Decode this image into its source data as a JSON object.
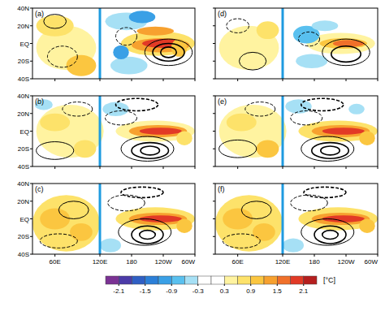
{
  "chart_data": {
    "type": "map",
    "xlim": [
      30,
      300
    ],
    "ylim": [
      -40,
      40
    ],
    "divider_lon": 120,
    "xticks": [
      {
        "value": 60,
        "label": "60E"
      },
      {
        "value": 120,
        "label": "120E"
      },
      {
        "value": 180,
        "label": "180"
      },
      {
        "value": 240,
        "label": "120W"
      },
      {
        "value": 300,
        "label": "60W"
      }
    ],
    "yticks": [
      {
        "value": 40,
        "label": "40N"
      },
      {
        "value": 20,
        "label": "20N"
      },
      {
        "value": 0,
        "label": "EQ"
      },
      {
        "value": -20,
        "label": "20S"
      },
      {
        "value": -40,
        "label": "40S"
      }
    ],
    "colorbar": {
      "bounds": [
        -2.1,
        -1.8,
        -1.5,
        -1.2,
        -0.9,
        -0.6,
        -0.3,
        0,
        0.3,
        0.6,
        0.9,
        1.2,
        1.5,
        1.8,
        2.1
      ],
      "colors": [
        "#7b3294",
        "#4b3ba8",
        "#2f5fc4",
        "#2b7fd8",
        "#3aa0e6",
        "#59c0ef",
        "#a6e0f5",
        "#ffffff",
        "#ffffff",
        "#fff3a0",
        "#fde26a",
        "#fbc640",
        "#f7a12f",
        "#f0702a",
        "#e23a26",
        "#b51f1f"
      ],
      "ticks": [
        -2.1,
        -1.5,
        -0.9,
        -0.3,
        0.3,
        0.9,
        1.5,
        2.1
      ],
      "label": "[°C]"
    },
    "panels": [
      {
        "label": "(a)",
        "shading": [
          [
            75,
            -5,
            40,
            25,
            0.5
          ],
          [
            60,
            20,
            25,
            12,
            0.8
          ],
          [
            95,
            -25,
            20,
            12,
            0.9
          ],
          [
            230,
            0,
            70,
            14,
            0.6
          ],
          [
            235,
            -2,
            55,
            8,
            1.2
          ],
          [
            240,
            0,
            40,
            5,
            1.8
          ],
          [
            270,
            -5,
            15,
            10,
            1.0
          ],
          [
            225,
            14,
            35,
            5,
            1.4
          ],
          [
            170,
            25,
            40,
            10,
            -0.6
          ],
          [
            200,
            30,
            25,
            7,
            -1.0
          ],
          [
            175,
            -25,
            35,
            10,
            -0.5
          ],
          [
            160,
            -10,
            15,
            8,
            -1.0
          ]
        ],
        "contours": [
          [
            250,
            -10,
            45,
            15,
            2
          ],
          [
            250,
            -10,
            30,
            10,
            4
          ],
          [
            250,
            -10,
            15,
            6,
            6
          ],
          [
            170,
            8,
            20,
            10,
            -2
          ],
          [
            60,
            25,
            15,
            8,
            2
          ],
          [
            70,
            -15,
            20,
            12,
            -2
          ]
        ]
      },
      {
        "label": "(b)",
        "shading": [
          [
            80,
            0,
            45,
            30,
            0.4
          ],
          [
            60,
            10,
            20,
            10,
            0.7
          ],
          [
            100,
            -20,
            15,
            10,
            0.8
          ],
          [
            225,
            0,
            75,
            12,
            0.5
          ],
          [
            230,
            0,
            55,
            7,
            1.2
          ],
          [
            235,
            0,
            40,
            4,
            1.9
          ],
          [
            280,
            -8,
            15,
            8,
            0.8
          ],
          [
            150,
            25,
            25,
            8,
            -0.4
          ],
          [
            45,
            30,
            12,
            6,
            -0.5
          ]
        ],
        "contours": [
          [
            210,
            -20,
            50,
            14,
            2
          ],
          [
            215,
            -22,
            35,
            9,
            4
          ],
          [
            215,
            -22,
            18,
            5,
            6
          ],
          [
            160,
            15,
            30,
            8,
            -2
          ],
          [
            190,
            30,
            40,
            7,
            -4
          ],
          [
            60,
            -22,
            25,
            10,
            2
          ],
          [
            90,
            25,
            20,
            8,
            -2
          ]
        ]
      },
      {
        "label": "(c)",
        "shading": [
          [
            75,
            -5,
            45,
            32,
            0.6
          ],
          [
            60,
            0,
            20,
            12,
            1.0
          ],
          [
            95,
            -15,
            15,
            10,
            1.0
          ],
          [
            225,
            0,
            75,
            13,
            0.6
          ],
          [
            230,
            0,
            55,
            7,
            1.3
          ],
          [
            235,
            0,
            40,
            4,
            2.0
          ],
          [
            280,
            -8,
            15,
            8,
            0.9
          ],
          [
            140,
            -30,
            20,
            8,
            -0.4
          ]
        ],
        "contours": [
          [
            205,
            -15,
            50,
            15,
            2
          ],
          [
            210,
            -18,
            30,
            10,
            4
          ],
          [
            210,
            -18,
            15,
            5,
            6
          ],
          [
            170,
            18,
            35,
            9,
            -2
          ],
          [
            200,
            30,
            40,
            6,
            -4
          ],
          [
            65,
            -25,
            25,
            8,
            -2
          ],
          [
            85,
            10,
            20,
            10,
            2
          ]
        ]
      },
      {
        "label": "(d)",
        "shading": [
          [
            75,
            -5,
            40,
            25,
            0.4
          ],
          [
            100,
            15,
            15,
            10,
            0.8
          ],
          [
            230,
            0,
            65,
            12,
            0.5
          ],
          [
            235,
            0,
            45,
            6,
            1.0
          ],
          [
            245,
            0,
            30,
            4,
            1.5
          ],
          [
            165,
            10,
            25,
            10,
            -0.7
          ],
          [
            200,
            20,
            25,
            6,
            -0.6
          ],
          [
            175,
            -20,
            30,
            8,
            -0.5
          ]
        ],
        "contours": [
          [
            240,
            -10,
            45,
            15,
            2
          ],
          [
            240,
            -12,
            28,
            9,
            4
          ],
          [
            170,
            5,
            20,
            8,
            -2
          ],
          [
            60,
            20,
            15,
            8,
            -2
          ],
          [
            80,
            -20,
            18,
            10,
            2
          ]
        ]
      },
      {
        "label": "(e)",
        "shading": [
          [
            80,
            0,
            45,
            30,
            0.5
          ],
          [
            65,
            10,
            20,
            10,
            0.8
          ],
          [
            100,
            -20,
            15,
            10,
            0.9
          ],
          [
            225,
            0,
            75,
            12,
            0.6
          ],
          [
            230,
            0,
            55,
            7,
            1.3
          ],
          [
            235,
            0,
            40,
            4,
            2.0
          ],
          [
            280,
            -8,
            15,
            8,
            0.9
          ],
          [
            150,
            28,
            25,
            8,
            -0.5
          ],
          [
            260,
            25,
            15,
            6,
            -0.4
          ]
        ],
        "contours": [
          [
            205,
            -20,
            50,
            14,
            2
          ],
          [
            210,
            -22,
            35,
            9,
            4
          ],
          [
            210,
            -22,
            18,
            5,
            6
          ],
          [
            165,
            15,
            30,
            8,
            -2
          ],
          [
            195,
            30,
            40,
            7,
            -4
          ],
          [
            60,
            -20,
            25,
            10,
            2
          ],
          [
            90,
            25,
            20,
            8,
            -2
          ]
        ]
      },
      {
        "label": "(f)",
        "shading": [
          [
            75,
            -5,
            45,
            32,
            0.6
          ],
          [
            60,
            0,
            20,
            12,
            1.1
          ],
          [
            95,
            -15,
            15,
            10,
            1.0
          ],
          [
            225,
            0,
            75,
            13,
            0.6
          ],
          [
            230,
            0,
            55,
            7,
            1.4
          ],
          [
            235,
            0,
            40,
            4,
            2.0
          ],
          [
            280,
            -8,
            15,
            8,
            1.0
          ],
          [
            140,
            -30,
            20,
            8,
            -0.4
          ]
        ],
        "contours": [
          [
            205,
            -15,
            50,
            15,
            2
          ],
          [
            210,
            -18,
            30,
            10,
            4
          ],
          [
            210,
            -18,
            15,
            5,
            6
          ],
          [
            170,
            18,
            35,
            9,
            -2
          ],
          [
            200,
            30,
            40,
            6,
            -4
          ],
          [
            65,
            -25,
            25,
            8,
            -2
          ],
          [
            85,
            10,
            20,
            10,
            2
          ]
        ]
      }
    ]
  }
}
